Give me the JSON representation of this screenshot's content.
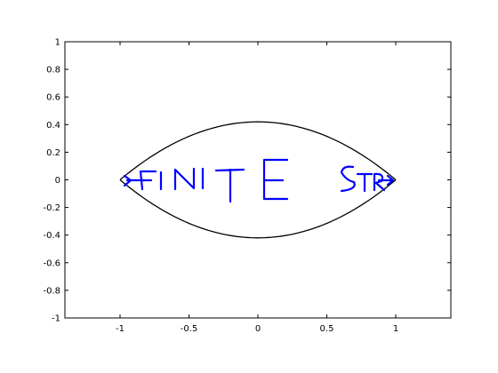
{
  "chart_data": {
    "type": "line",
    "title": "",
    "xlabel": "",
    "ylabel": "",
    "xlim": [
      -1.4,
      1.4
    ],
    "ylim": [
      -1,
      1
    ],
    "grid": false,
    "legend": "none",
    "xticks": [
      -1,
      -0.5,
      0,
      0.5,
      1
    ],
    "xtick_labels": [
      "-1",
      "-0.5",
      "0",
      "0.5",
      "1"
    ],
    "yticks": [
      1,
      0.8,
      0.6,
      0.4,
      0.2,
      0,
      -0.2,
      -0.4,
      -0.6,
      -0.8,
      -1
    ],
    "ytick_labels": [
      "1",
      "0.8",
      "0.6",
      "0.4",
      "0.2",
      "0",
      "-0.2",
      "-0.4",
      "-0.6",
      "-0.8",
      "-1"
    ],
    "series": [
      {
        "color": "#000000",
        "x": [
          -1,
          -0.75,
          -0.5,
          -0.25,
          0,
          0.25,
          0.5,
          0.75,
          1
        ],
        "y": [
          0,
          0.19,
          0.31,
          0.39,
          0.42,
          0.39,
          0.31,
          0.19,
          0
        ]
      },
      {
        "color": "#000000",
        "x": [
          -1,
          -0.75,
          -0.5,
          -0.25,
          0,
          0.25,
          0.5,
          0.75,
          1
        ],
        "y": [
          0,
          -0.19,
          -0.31,
          -0.39,
          -0.42,
          -0.39,
          -0.31,
          -0.19,
          0
        ]
      }
    ],
    "annotation": {
      "text": "FINITE STRIP",
      "visible_text": "INITE STR",
      "color": "#0000ff",
      "x_start": -0.98,
      "y": 0
    }
  }
}
